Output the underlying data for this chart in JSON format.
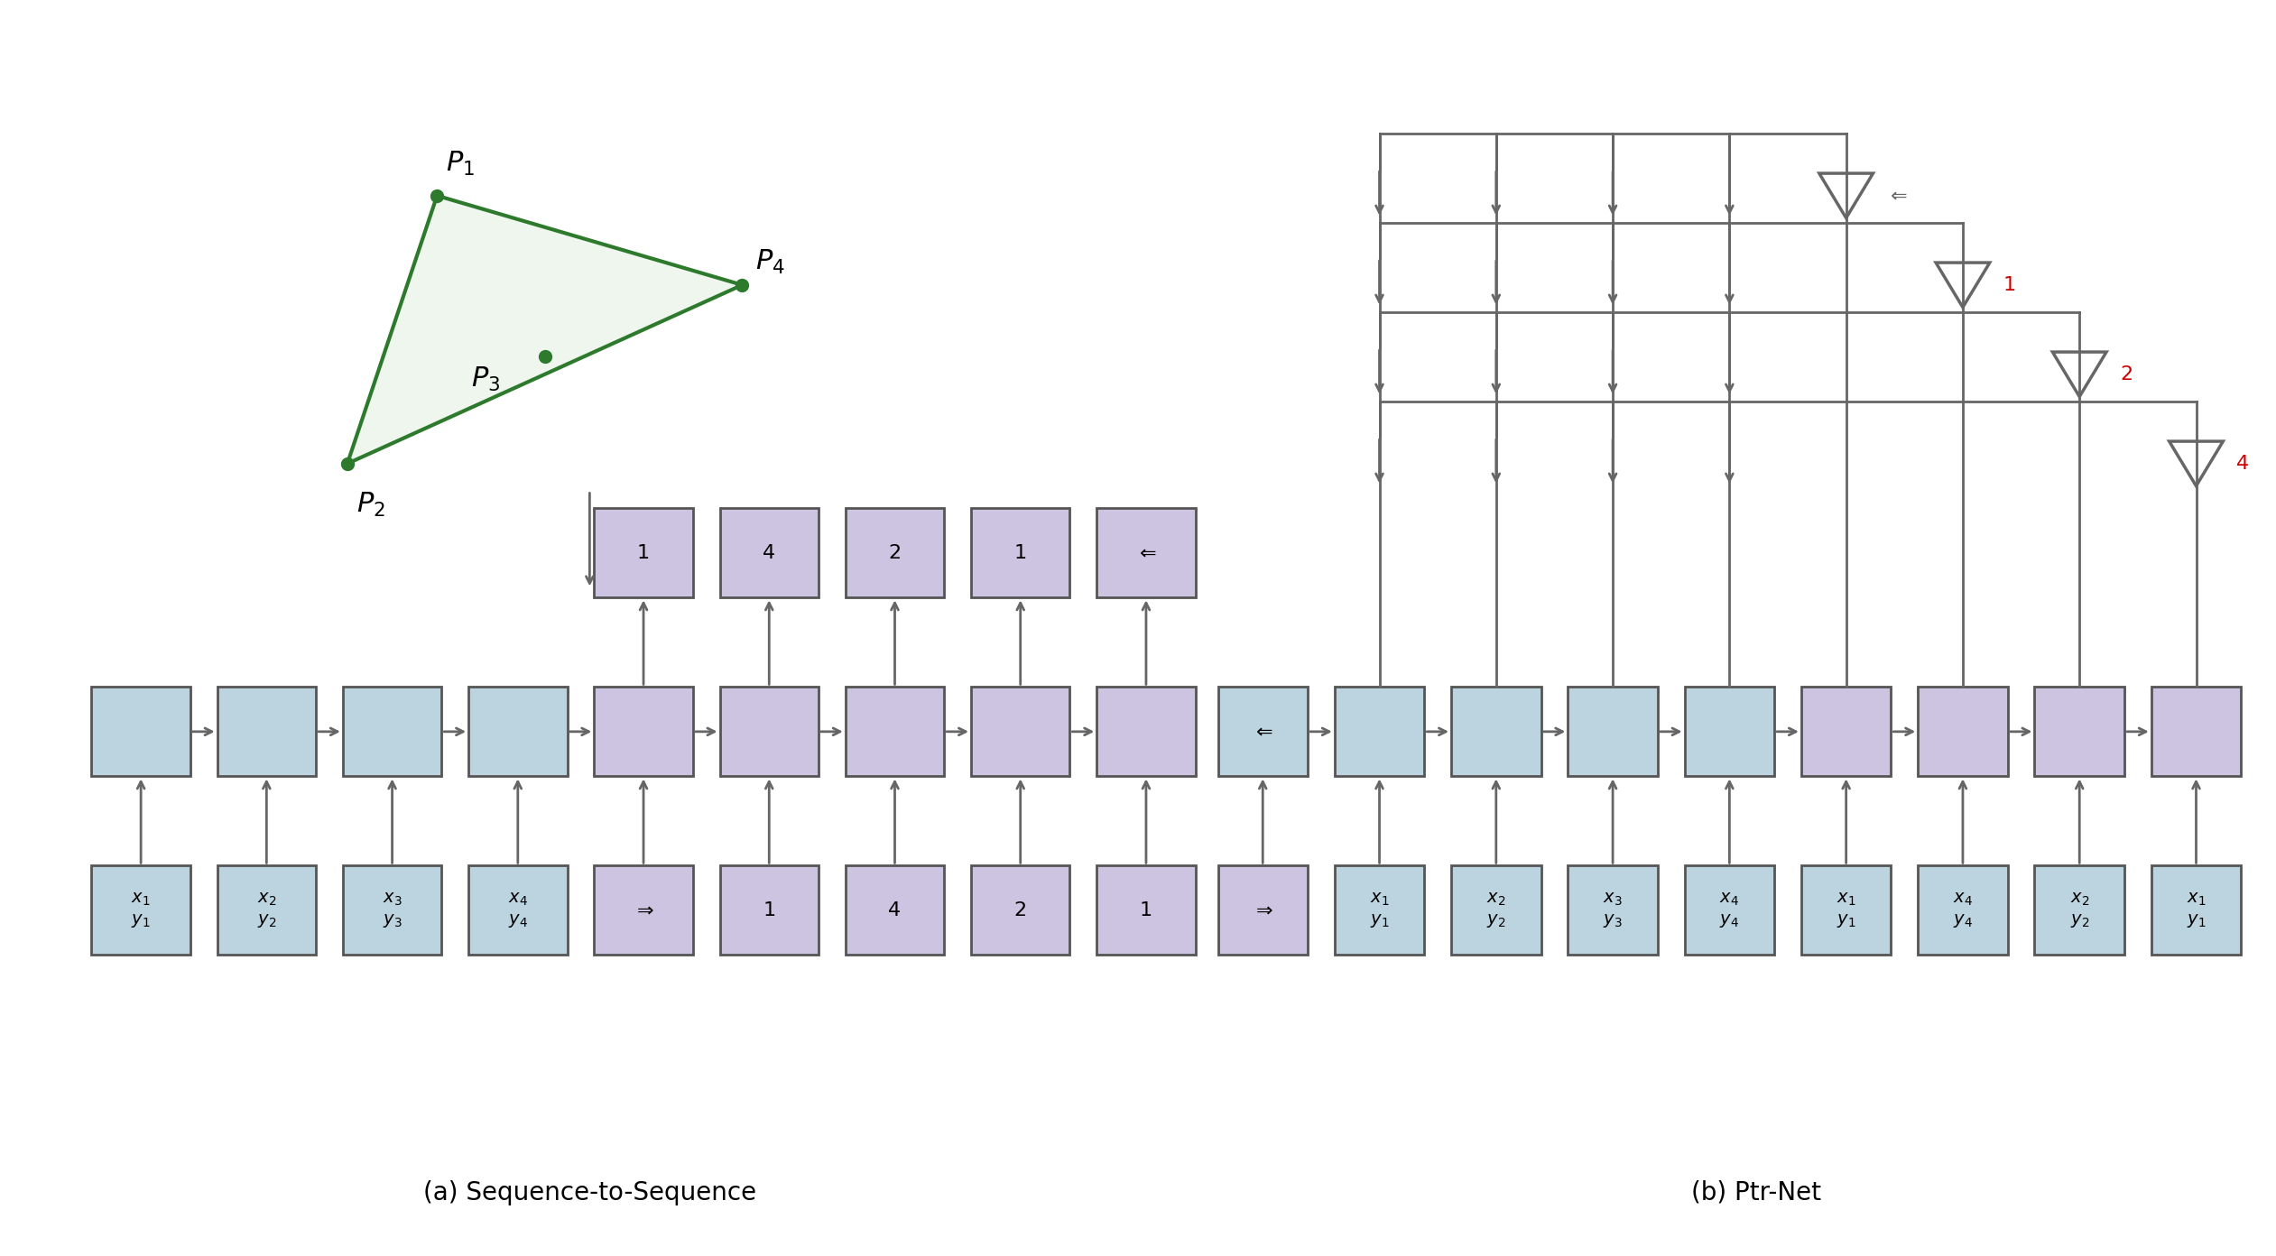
{
  "caption_a": "(a) Sequence-to-Sequence",
  "caption_b": "(b) Ptr-Net",
  "enc_box_color": "#bcd4e0",
  "dec_box_color": "#ccc4e0",
  "inp_box_color": "#bcd4e0",
  "out_box_color": "#ccc4e0",
  "arrow_color": "#666666",
  "red_color": "#cc0000",
  "triangle_color": "#2d7a2d",
  "triangle_fill": "#eef6ee",
  "background_color": "#ffffff",
  "figw": 25.22,
  "figh": 13.92,
  "dpi": 100
}
